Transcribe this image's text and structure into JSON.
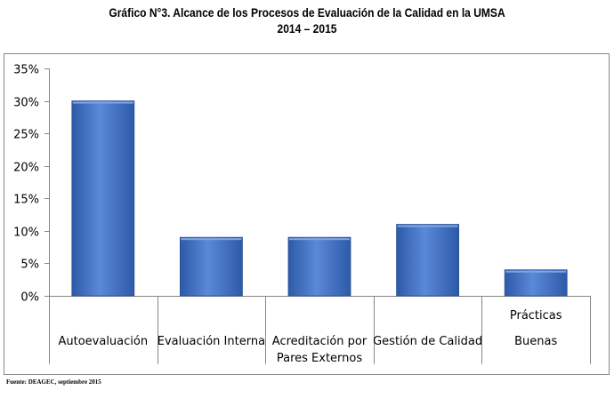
{
  "title_line1": "Gráfico N°3. Alcance de los Procesos de Evaluación de la Calidad en la UMSA",
  "title_line2": "2014 – 2015",
  "source": "Fuente: DEAGEC, septiembre 2015",
  "colors": {
    "bar": "#4472C4",
    "bar_dark": "#2a57a6",
    "bar_light": "#6f9ae0",
    "border": "#868686",
    "axis": "#868686"
  },
  "chart_data": {
    "type": "bar",
    "categories": [
      "Autoevaluación",
      "Evaluación Interna",
      "Acreditación por Pares Externos",
      "Gestión de Calidad",
      "Prácticas Buenas"
    ],
    "category_lines": [
      [
        "Autoevaluación"
      ],
      [
        "Evaluación Interna"
      ],
      [
        "Acreditación por",
        "Pares Externos"
      ],
      [
        "Gestión de Calidad"
      ],
      [
        "Prácticas",
        "Buenas"
      ]
    ],
    "values": [
      30,
      9,
      9,
      11,
      4
    ],
    "ylim": [
      0,
      35
    ],
    "yticks": [
      0,
      5,
      10,
      15,
      20,
      25,
      30,
      35
    ],
    "ytick_labels": [
      "0%",
      "5%",
      "10%",
      "15%",
      "20%",
      "25%",
      "30%",
      "35%"
    ],
    "grid": false,
    "legend": "none"
  }
}
